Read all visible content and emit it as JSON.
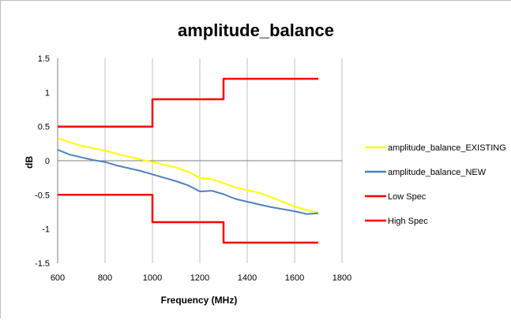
{
  "chart_data": {
    "type": "line",
    "title": "amplitude_balance",
    "xlabel": "Frequency (MHz)",
    "ylabel": "dB",
    "xlim": [
      600,
      1800
    ],
    "ylim": [
      -1.5,
      1.5
    ],
    "x_ticks": [
      600,
      800,
      1000,
      1200,
      1400,
      1600,
      1800
    ],
    "y_ticks": [
      1.5,
      1,
      0.5,
      0,
      -0.5,
      -1,
      -1.5
    ],
    "y_tick_labels": [
      "1.5",
      "1",
      "0.5",
      "0",
      "-0.5",
      "-1",
      "-1.5"
    ],
    "grid": {
      "vertical": true,
      "horizontal": false
    },
    "legend_position": "right",
    "series": [
      {
        "name": "amplitude_balance_EXISTING",
        "color": "#ffff00",
        "x": [
          600,
          650,
          700,
          750,
          800,
          850,
          900,
          950,
          1000,
          1050,
          1100,
          1150,
          1200,
          1250,
          1300,
          1350,
          1400,
          1450,
          1500,
          1550,
          1600,
          1650,
          1700
        ],
        "y": [
          0.33,
          0.27,
          0.22,
          0.18,
          0.15,
          0.1,
          0.06,
          0.02,
          -0.02,
          -0.06,
          -0.1,
          -0.16,
          -0.25,
          -0.27,
          -0.33,
          -0.39,
          -0.43,
          -0.47,
          -0.53,
          -0.6,
          -0.67,
          -0.72,
          -0.76
        ]
      },
      {
        "name": "amplitude_balance_NEW",
        "color": "#4f81bd",
        "x": [
          600,
          650,
          700,
          750,
          800,
          850,
          900,
          950,
          1000,
          1050,
          1100,
          1150,
          1200,
          1250,
          1300,
          1350,
          1400,
          1450,
          1500,
          1550,
          1600,
          1650,
          1700
        ],
        "y": [
          0.16,
          0.09,
          0.05,
          0.01,
          -0.02,
          -0.07,
          -0.11,
          -0.15,
          -0.2,
          -0.25,
          -0.3,
          -0.36,
          -0.45,
          -0.44,
          -0.49,
          -0.56,
          -0.6,
          -0.64,
          -0.68,
          -0.71,
          -0.74,
          -0.78,
          -0.77
        ]
      },
      {
        "name": "Low Spec",
        "color": "#ff0000",
        "x": [
          600,
          1000,
          1000,
          1300,
          1300,
          1700
        ],
        "y": [
          -0.5,
          -0.5,
          -0.9,
          -0.9,
          -1.2,
          -1.2
        ]
      },
      {
        "name": "High Spec",
        "color": "#ff0000",
        "x": [
          600,
          1000,
          1000,
          1300,
          1300,
          1700
        ],
        "y": [
          0.5,
          0.5,
          0.9,
          0.9,
          1.2,
          1.2
        ]
      }
    ]
  }
}
